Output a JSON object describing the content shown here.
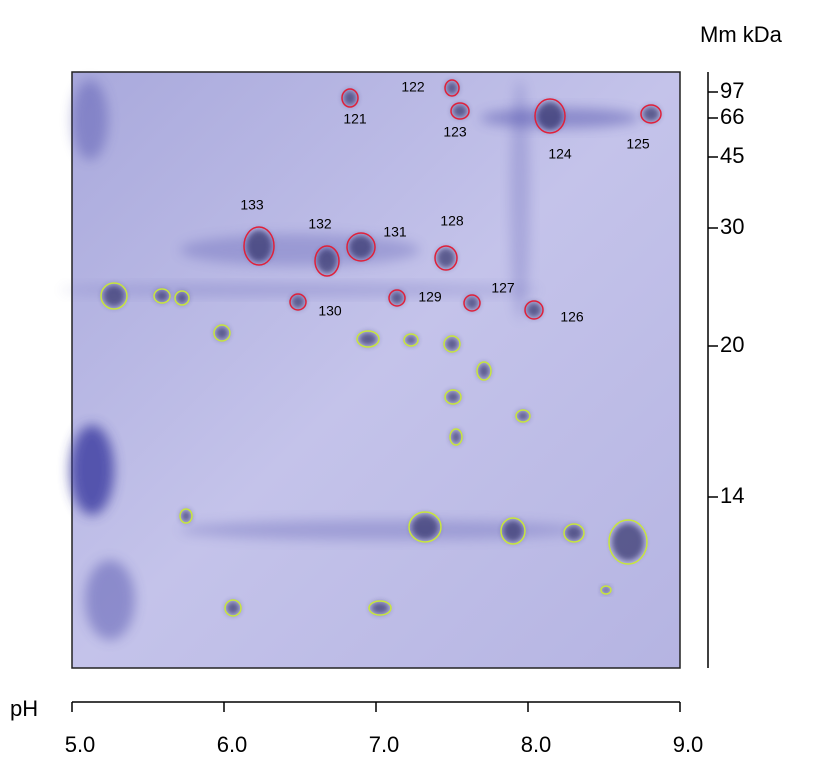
{
  "axes": {
    "y_title": "Mm kDa",
    "y_ticks": [
      "97",
      "66",
      "45",
      "30",
      "20",
      "14"
    ],
    "x_title": "pH",
    "x_ticks": [
      "5.0",
      "6.0",
      "7.0",
      "8.0",
      "9.0"
    ]
  },
  "spots": [
    {
      "label": "121"
    },
    {
      "label": "122"
    },
    {
      "label": "123"
    },
    {
      "label": "124"
    },
    {
      "label": "125"
    },
    {
      "label": "133"
    },
    {
      "label": "132"
    },
    {
      "label": "131"
    },
    {
      "label": "128"
    },
    {
      "label": "127"
    },
    {
      "label": "129"
    },
    {
      "label": "130"
    },
    {
      "label": "126"
    }
  ]
}
